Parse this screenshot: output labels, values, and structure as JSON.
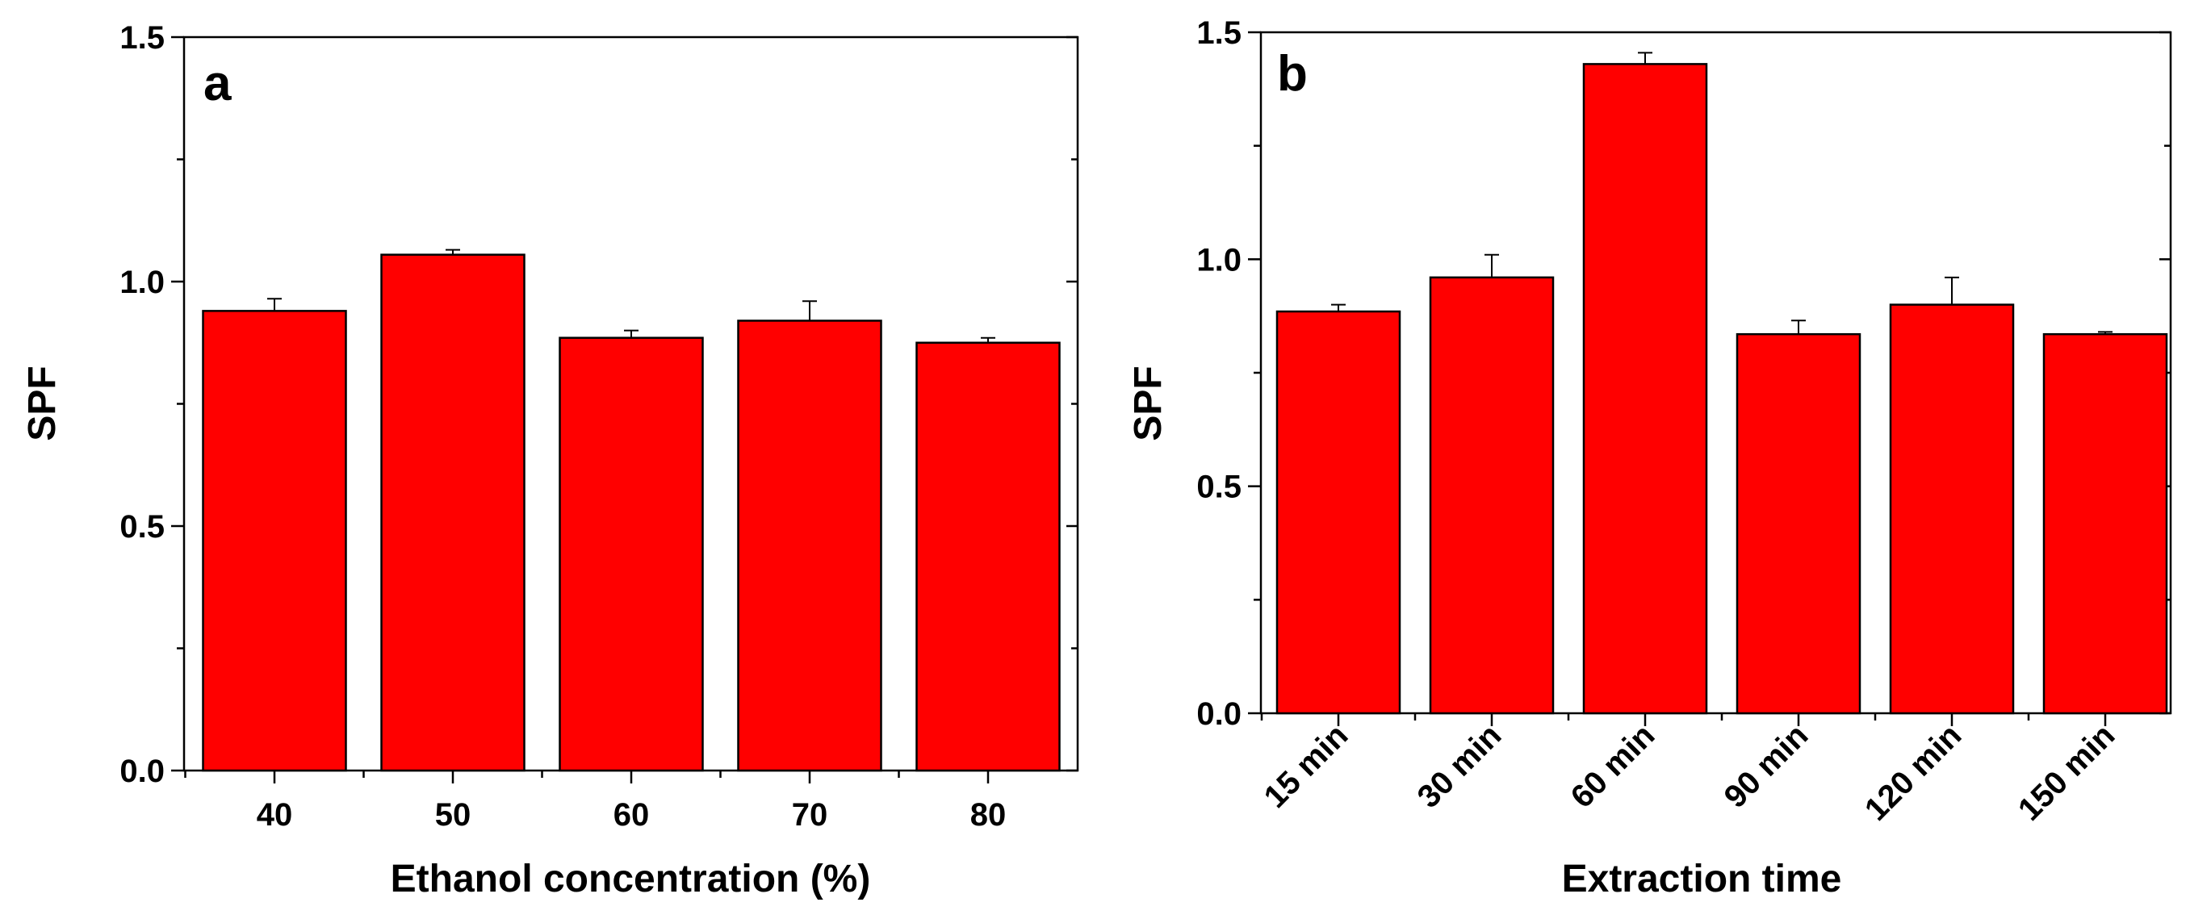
{
  "chart_data": [
    {
      "type": "bar",
      "panel_label": "a",
      "categories": [
        "40",
        "50",
        "60",
        "70",
        "80"
      ],
      "values": [
        0.94,
        1.055,
        0.885,
        0.92,
        0.875
      ],
      "errors": [
        0.025,
        0.01,
        0.015,
        0.04,
        0.01
      ],
      "xlabel": "Ethanol concentration (%)",
      "ylabel": "SPF",
      "ylim": [
        0,
        1.5
      ],
      "yticks": [
        "0.0",
        "0.5",
        "1.0",
        "1.5"
      ],
      "bar_color": "#ff0000"
    },
    {
      "type": "bar",
      "panel_label": "b",
      "categories": [
        "15  min",
        "30 min",
        "60 min",
        "90 min",
        "120 min",
        "150 min"
      ],
      "values": [
        0.885,
        0.96,
        1.43,
        0.835,
        0.9,
        0.835
      ],
      "errors": [
        0.015,
        0.05,
        0.025,
        0.03,
        0.06,
        0.005
      ],
      "xlabel": "Extraction time",
      "ylabel": "SPF",
      "ylim": [
        0,
        1.5
      ],
      "yticks": [
        "0.0",
        "0.5",
        "1.0",
        "1.5"
      ],
      "bar_color": "#ff0000"
    }
  ]
}
